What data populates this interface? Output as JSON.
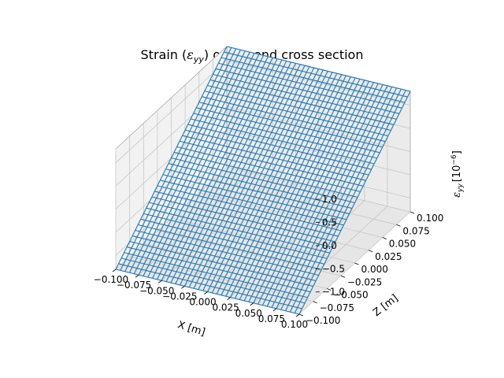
{
  "chart_data": {
    "type": "surface-wireframe",
    "title": "Strain (εyy) of the end cross section",
    "xlabel": "X [m]",
    "ylabel": "Z [m]",
    "zlabel": "εyy [10⁻⁶]",
    "x_ticks": [
      "−0.100",
      "−0.075",
      "−0.050",
      "−0.025",
      "0.000",
      "0.025",
      "0.050",
      "0.075",
      "0.100"
    ],
    "y_ticks": [
      "−0.100",
      "−0.075",
      "−0.050",
      "−0.025",
      "0.000",
      "0.025",
      "0.050",
      "0.075",
      "0.100"
    ],
    "z_ticks": [
      "−1.0",
      "−0.5",
      "0.0",
      "0.5",
      "1.0"
    ],
    "xlim": [
      -0.1,
      0.1
    ],
    "ylim": [
      -0.1,
      0.1
    ],
    "zlim": [
      -1.3,
      1.3
    ],
    "surface": "εyy = 13 · Z (plane, linear in Z)",
    "grid_lines_per_axis": 41,
    "line_color": "#1f77b4"
  },
  "title_parts": {
    "before": "Strain (",
    "symbol": "ε",
    "sub": "yy",
    "after": ") of the end cross section"
  },
  "zlabel_parts": {
    "symbol": "ε",
    "sub": "yy",
    "unit": "[10",
    "exp": "−6",
    "close": "]"
  }
}
